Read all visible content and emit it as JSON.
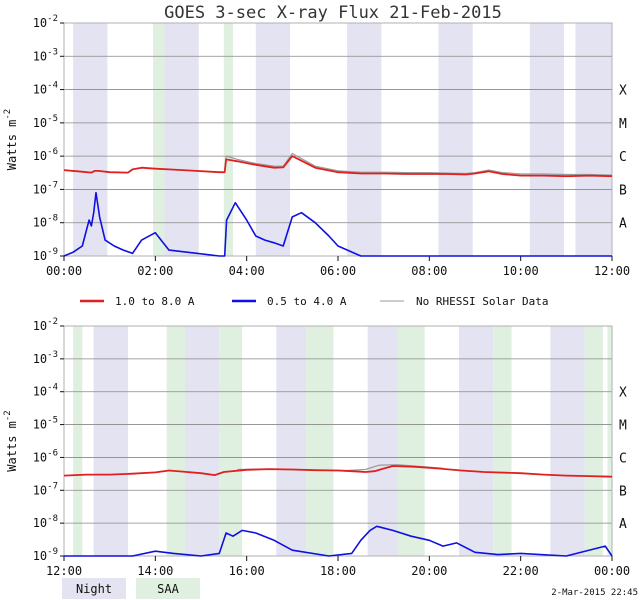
{
  "colors": {
    "night": "#e3e3f1",
    "saa": "#e0f0e0",
    "long_channel": "#e02020",
    "short_channel": "#1010e0",
    "no_rhessi": "#999999",
    "grid": "#888888",
    "frame": "#b0b0b0"
  },
  "legend": {
    "items": [
      {
        "label": "1.0 to 8.0 A",
        "color": "#e02020"
      },
      {
        "label": "0.5 to 4.0 A",
        "color": "#1010e0"
      },
      {
        "label": "No RHESSI Solar Data",
        "color": "#999999"
      }
    ]
  },
  "shade_legend": {
    "night": "Night",
    "saa": "SAA"
  },
  "timestamp": "2-Mar-2015 22:45",
  "chart_data": [
    {
      "type": "line",
      "title": "GOES 3-sec X-ray Flux   21-Feb-2015",
      "ylabel": "Watts m",
      "ylabel_sup": "-2",
      "yscale": "log",
      "ylim": [
        1e-09,
        0.01
      ],
      "yticks": [
        {
          "base": "10",
          "exp": "-2"
        },
        {
          "base": "10",
          "exp": "-3"
        },
        {
          "base": "10",
          "exp": "-4"
        },
        {
          "base": "10",
          "exp": "-5"
        },
        {
          "base": "10",
          "exp": "-6"
        },
        {
          "base": "10",
          "exp": "-7"
        },
        {
          "base": "10",
          "exp": "-8"
        },
        {
          "base": "10",
          "exp": "-9"
        }
      ],
      "flare_classes": [
        "X",
        "M",
        "C",
        "B",
        "A"
      ],
      "xlim_hours": [
        0,
        12
      ],
      "xtick_hours": [
        0,
        2,
        4,
        6,
        8,
        10,
        12
      ],
      "xtick_labels": [
        "00:00",
        "02:00",
        "04:00",
        "06:00",
        "08:00",
        "10:00",
        "12:00"
      ],
      "night_intervals": [
        [
          0.2,
          0.95
        ],
        [
          2.2,
          2.95
        ],
        [
          4.2,
          4.95
        ],
        [
          6.2,
          6.95
        ],
        [
          8.2,
          8.95
        ],
        [
          10.2,
          10.95
        ],
        [
          11.2,
          12.0
        ]
      ],
      "saa_intervals": [
        [
          1.95,
          2.2
        ],
        [
          3.5,
          3.7
        ]
      ],
      "series": [
        {
          "name": "1.0 to 8.0 A",
          "x": [
            0,
            0.3,
            0.6,
            0.67,
            0.75,
            1.0,
            1.4,
            1.5,
            1.7,
            2.0,
            2.3,
            2.6,
            2.9,
            3.2,
            3.4,
            3.52,
            3.55,
            3.8,
            4.2,
            4.6,
            4.8,
            5.0,
            5.5,
            6.0,
            6.5,
            7.0,
            7.5,
            8.0,
            8.4,
            8.8,
            9.0,
            9.3,
            9.6,
            10.0,
            10.5,
            11.0,
            11.5,
            12.0
          ],
          "values": [
            3.8e-07,
            3.5e-07,
            3.2e-07,
            3.6e-07,
            3.6e-07,
            3.3e-07,
            3.2e-07,
            4e-07,
            4.5e-07,
            4.2e-07,
            4e-07,
            3.8e-07,
            3.6e-07,
            3.4e-07,
            3.3e-07,
            3.3e-07,
            8e-07,
            7e-07,
            5.5e-07,
            4.5e-07,
            4.6e-07,
            1e-06,
            4.5e-07,
            3.3e-07,
            3e-07,
            3e-07,
            2.9e-07,
            2.9e-07,
            2.9e-07,
            2.8e-07,
            3e-07,
            3.5e-07,
            2.9e-07,
            2.6e-07,
            2.6e-07,
            2.5e-07,
            2.6e-07,
            2.5e-07
          ]
        },
        {
          "name": "No RHESSI Solar Data",
          "x": [
            3.52,
            3.55,
            3.8,
            4.2,
            4.6,
            4.8,
            5.0,
            5.5,
            6.0,
            6.5,
            7.0,
            7.5,
            8.0,
            8.4,
            8.8,
            9.0,
            9.3,
            9.6,
            10.0,
            10.5,
            11.0,
            11.5,
            12.0
          ],
          "values": [
            3.3e-07,
            1e-06,
            8e-07,
            6e-07,
            5e-07,
            5e-07,
            1.2e-06,
            5e-07,
            3.6e-07,
            3.3e-07,
            3.3e-07,
            3.2e-07,
            3.2e-07,
            3.1e-07,
            3e-07,
            3.2e-07,
            3.8e-07,
            3.2e-07,
            2.9e-07,
            2.9e-07,
            2.8e-07,
            2.8e-07,
            2.7e-07
          ]
        },
        {
          "name": "0.5 to 4.0 A",
          "x": [
            0,
            0.2,
            0.4,
            0.55,
            0.6,
            0.65,
            0.7,
            0.78,
            0.9,
            1.1,
            1.3,
            1.5,
            1.7,
            2.0,
            2.3,
            3.4,
            3.52,
            3.56,
            3.75,
            4.0,
            4.2,
            4.4,
            4.6,
            4.8,
            5.0,
            5.2,
            5.5,
            5.8,
            6.0,
            6.5,
            8.0,
            10.0,
            12.0
          ],
          "values": [
            1e-09,
            1.3e-09,
            2e-09,
            1.2e-08,
            8e-09,
            2e-08,
            8e-08,
            1.5e-08,
            3e-09,
            2e-09,
            1.5e-09,
            1.2e-09,
            3e-09,
            5e-09,
            1.5e-09,
            1e-09,
            1e-09,
            1.2e-08,
            4e-08,
            1.2e-08,
            4e-09,
            3e-09,
            2.5e-09,
            2e-09,
            1.5e-08,
            2e-08,
            1e-08,
            4e-09,
            2e-09,
            1e-09,
            1e-09,
            1e-09,
            1e-09
          ]
        }
      ]
    },
    {
      "type": "line",
      "title": "",
      "ylabel": "Watts m",
      "ylabel_sup": "-2",
      "yscale": "log",
      "ylim": [
        1e-09,
        0.01
      ],
      "yticks": [
        {
          "base": "10",
          "exp": "-2"
        },
        {
          "base": "10",
          "exp": "-3"
        },
        {
          "base": "10",
          "exp": "-4"
        },
        {
          "base": "10",
          "exp": "-5"
        },
        {
          "base": "10",
          "exp": "-6"
        },
        {
          "base": "10",
          "exp": "-7"
        },
        {
          "base": "10",
          "exp": "-8"
        },
        {
          "base": "10",
          "exp": "-9"
        }
      ],
      "flare_classes": [
        "X",
        "M",
        "C",
        "B",
        "A"
      ],
      "xlim_hours": [
        12,
        24
      ],
      "xtick_hours": [
        12,
        14,
        16,
        18,
        20,
        22,
        24
      ],
      "xtick_labels": [
        "12:00",
        "14:00",
        "16:00",
        "18:00",
        "20:00",
        "22:00",
        "00:00"
      ],
      "night_intervals": [
        [
          12.65,
          13.4
        ],
        [
          14.65,
          15.4
        ],
        [
          16.65,
          17.4
        ],
        [
          18.65,
          19.4
        ],
        [
          20.65,
          21.4
        ],
        [
          22.65,
          23.4
        ]
      ],
      "saa_intervals": [
        [
          12.2,
          12.4
        ],
        [
          14.25,
          14.65
        ],
        [
          15.4,
          15.9
        ],
        [
          17.3,
          17.9
        ],
        [
          19.3,
          19.9
        ],
        [
          21.4,
          21.8
        ],
        [
          23.4,
          23.8
        ],
        [
          23.9,
          24.0
        ]
      ],
      "series": [
        {
          "name": "1.0 to 8.0 A",
          "x": [
            12,
            12.5,
            13,
            13.5,
            14,
            14.3,
            14.6,
            15,
            15.3,
            15.5,
            16,
            16.5,
            17,
            17.5,
            18,
            18.3,
            18.6,
            18.8,
            19.2,
            19.7,
            20.2,
            20.7,
            21.2,
            22,
            22.5,
            23,
            23.5,
            24
          ],
          "values": [
            2.8e-07,
            3e-07,
            3e-07,
            3.2e-07,
            3.5e-07,
            4e-07,
            3.7e-07,
            3.3e-07,
            2.9e-07,
            3.6e-07,
            4.2e-07,
            4.4e-07,
            4.3e-07,
            4.1e-07,
            4e-07,
            3.8e-07,
            3.6e-07,
            3.8e-07,
            5.5e-07,
            5.2e-07,
            4.6e-07,
            4e-07,
            3.6e-07,
            3.3e-07,
            3e-07,
            2.8e-07,
            2.7e-07,
            2.6e-07
          ]
        },
        {
          "name": "No RHESSI Solar Data",
          "x": [
            15.8,
            16.3,
            16.8,
            17.3,
            17.9,
            18.2,
            18.6,
            18.9,
            19.3,
            19.8,
            20.3
          ],
          "values": [
            4.3e-07,
            4.4e-07,
            4.3e-07,
            4.2e-07,
            4e-07,
            4e-07,
            4.3e-07,
            5.8e-07,
            6e-07,
            5.3e-07,
            4.7e-07
          ]
        },
        {
          "name": "0.5 to 4.0 A",
          "x": [
            12,
            13.5,
            14.0,
            14.4,
            15.0,
            15.4,
            15.55,
            15.7,
            15.9,
            16.2,
            16.6,
            17.0,
            17.8,
            18.3,
            18.5,
            18.7,
            18.85,
            19.2,
            19.6,
            20.0,
            20.3,
            20.6,
            21.0,
            21.5,
            22.0,
            23.0,
            23.85,
            24
          ],
          "values": [
            1e-09,
            1e-09,
            1.4e-09,
            1.2e-09,
            1e-09,
            1.2e-09,
            5e-09,
            4e-09,
            6e-09,
            5e-09,
            3e-09,
            1.5e-09,
            1e-09,
            1.2e-09,
            3e-09,
            6e-09,
            8e-09,
            6e-09,
            4e-09,
            3e-09,
            2e-09,
            2.5e-09,
            1.3e-09,
            1.1e-09,
            1.2e-09,
            1e-09,
            2e-09,
            1e-09
          ]
        }
      ]
    }
  ]
}
